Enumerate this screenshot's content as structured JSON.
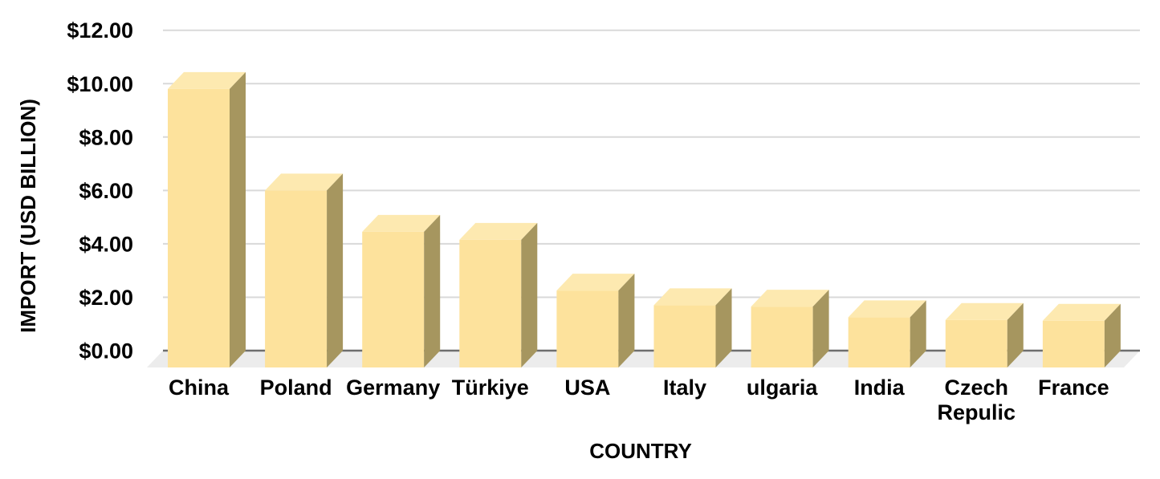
{
  "chart_data": {
    "type": "bar",
    "variant": "3d-column",
    "xlabel": "COUNTRY",
    "ylabel": "IMPORT (USD BILLION)",
    "categories": [
      "China",
      "Poland",
      "Germany",
      "Türkiye",
      "USA",
      "Italy",
      "ulgaria",
      "India",
      "Czech Repulic",
      "France"
    ],
    "values": [
      9.8,
      6.0,
      4.45,
      4.15,
      2.25,
      1.7,
      1.65,
      1.25,
      1.15,
      1.12
    ],
    "ylim": [
      0,
      12
    ],
    "grid": true,
    "legend": false,
    "y_ticks": [
      {
        "value": 0,
        "label": "$0.00"
      },
      {
        "value": 2,
        "label": "$2.00"
      },
      {
        "value": 4,
        "label": "$4.00"
      },
      {
        "value": 6,
        "label": "$6.00"
      },
      {
        "value": 8,
        "label": "$8.00"
      },
      {
        "value": 10,
        "label": "$10.00"
      },
      {
        "value": 12,
        "label": "$12.00"
      }
    ],
    "colors": {
      "bar_front": "#FDE29C",
      "bar_top": "#FDE9B0",
      "bar_side": "#A6965F",
      "gridline": "#D9D9D9",
      "axis_line": "#6E6E6E",
      "floor": "#ECECEC",
      "text": "#000000",
      "background": "#FFFFFF"
    }
  }
}
